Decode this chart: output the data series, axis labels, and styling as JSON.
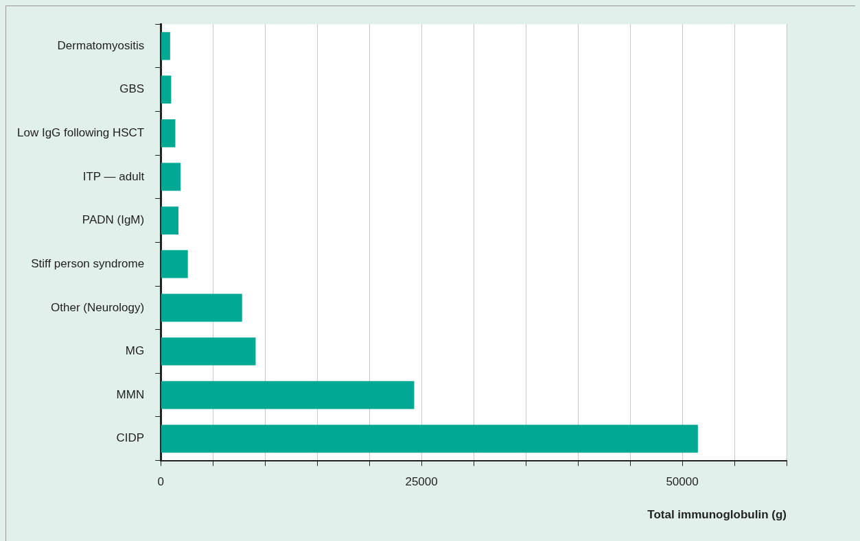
{
  "chart_data": {
    "type": "bar",
    "orientation": "horizontal",
    "xlabel": "Total immunoglobulin (g)",
    "categories": [
      "Dermatomyositis",
      "GBS",
      "Low IgG following HSCT",
      "ITP — adult",
      "PADN (IgM)",
      "Stiff person syndrome",
      "Other (Neurology)",
      "MG",
      "MMN",
      "CIDP"
    ],
    "values": [
      900,
      1000,
      1400,
      1900,
      1700,
      2600,
      7800,
      9100,
      24300,
      51500
    ],
    "color": "#00a994",
    "xlim": [
      0,
      60000
    ],
    "xticks": [
      0,
      {
        "value": 5000,
        "label": null
      },
      {
        "value": 10000,
        "label": null
      },
      {
        "value": 15000,
        "label": null
      },
      {
        "value": 20000,
        "label": null
      },
      25000,
      {
        "value": 30000,
        "label": null
      },
      {
        "value": 35000,
        "label": null
      },
      {
        "value": 40000,
        "label": null
      },
      {
        "value": 45000,
        "label": null
      },
      50000,
      {
        "value": 55000,
        "label": null
      },
      {
        "value": 60000,
        "label": null
      }
    ],
    "grid": "x",
    "legend": false
  }
}
